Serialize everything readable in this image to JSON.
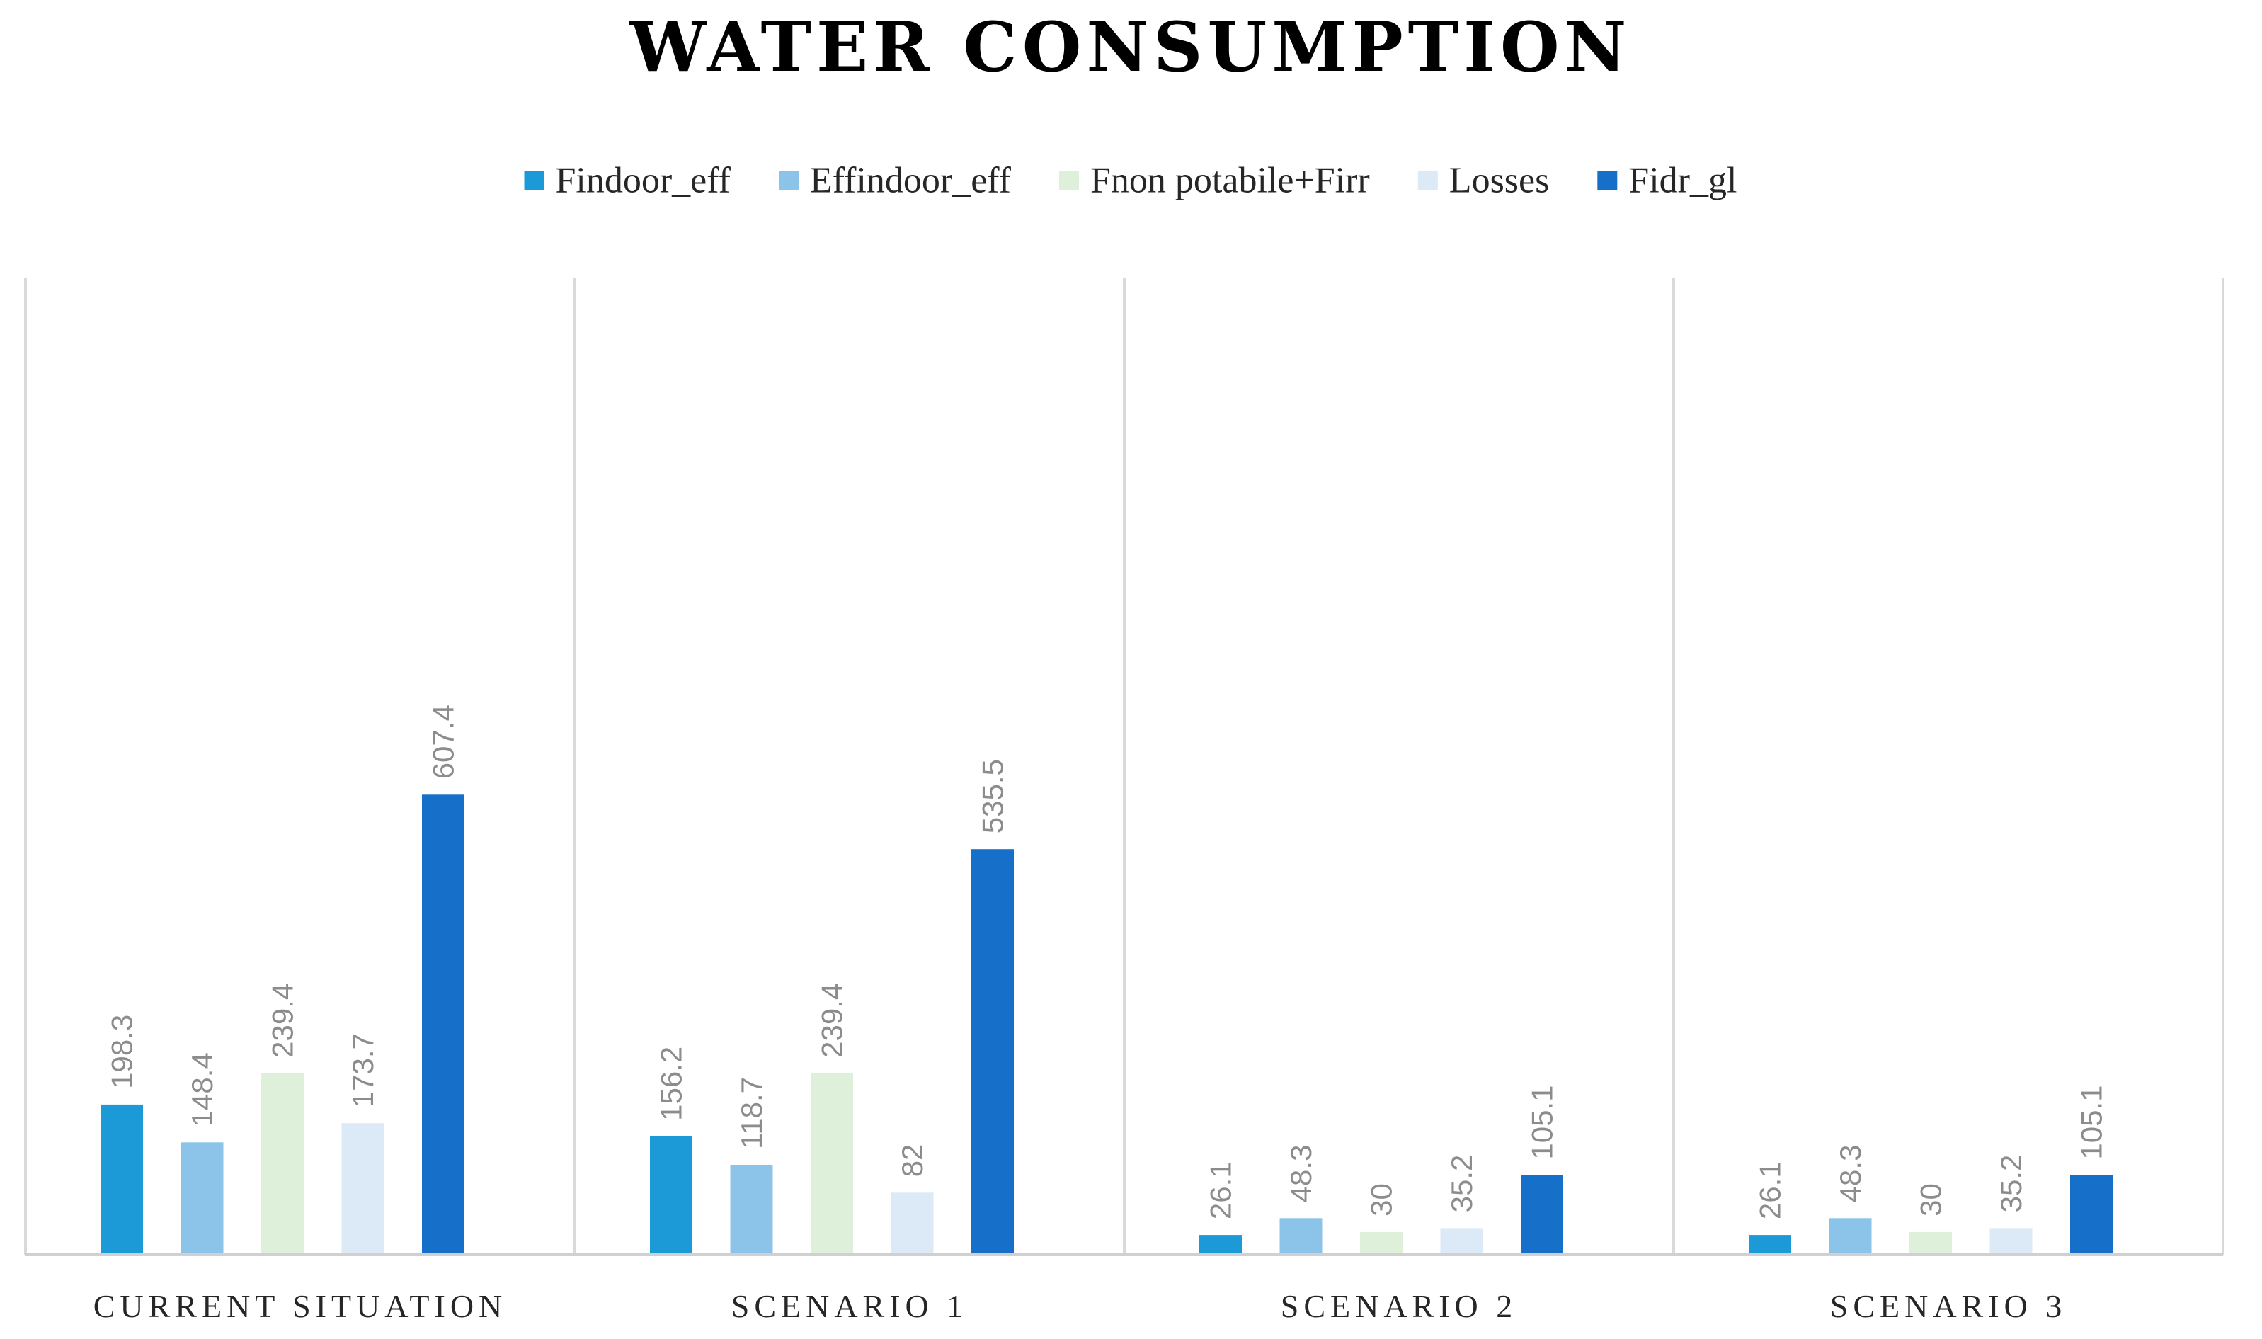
{
  "chart_data": {
    "type": "bar",
    "title": "WATER CONSUMPTION",
    "xlabel": "",
    "ylabel": "",
    "ylim": [
      0,
      675
    ],
    "grid": false,
    "legend_position": "top-center",
    "categories": [
      "CURRENT SITUATION",
      "SCENARIO 1",
      "SCENARIO 2",
      "SCENARIO 3"
    ],
    "series": [
      {
        "name": "Findoor_eff",
        "color": "#1b9ad7",
        "values": [
          198.3,
          156.2,
          26.1,
          26.1
        ]
      },
      {
        "name": "Effindoor_eff",
        "color": "#8cc3e8",
        "values": [
          148.4,
          118.7,
          48.3,
          48.3
        ]
      },
      {
        "name": "Fnon potabile+Firr",
        "color": "#dff0da",
        "values": [
          239.4,
          239.4,
          30,
          30
        ]
      },
      {
        "name": "Losses",
        "color": "#dce9f6",
        "values": [
          173.7,
          82,
          35.2,
          35.2
        ]
      },
      {
        "name": "Fidr_gl",
        "color": "#1670c9",
        "values": [
          607.4,
          535.5,
          105.1,
          105.1
        ]
      }
    ]
  }
}
